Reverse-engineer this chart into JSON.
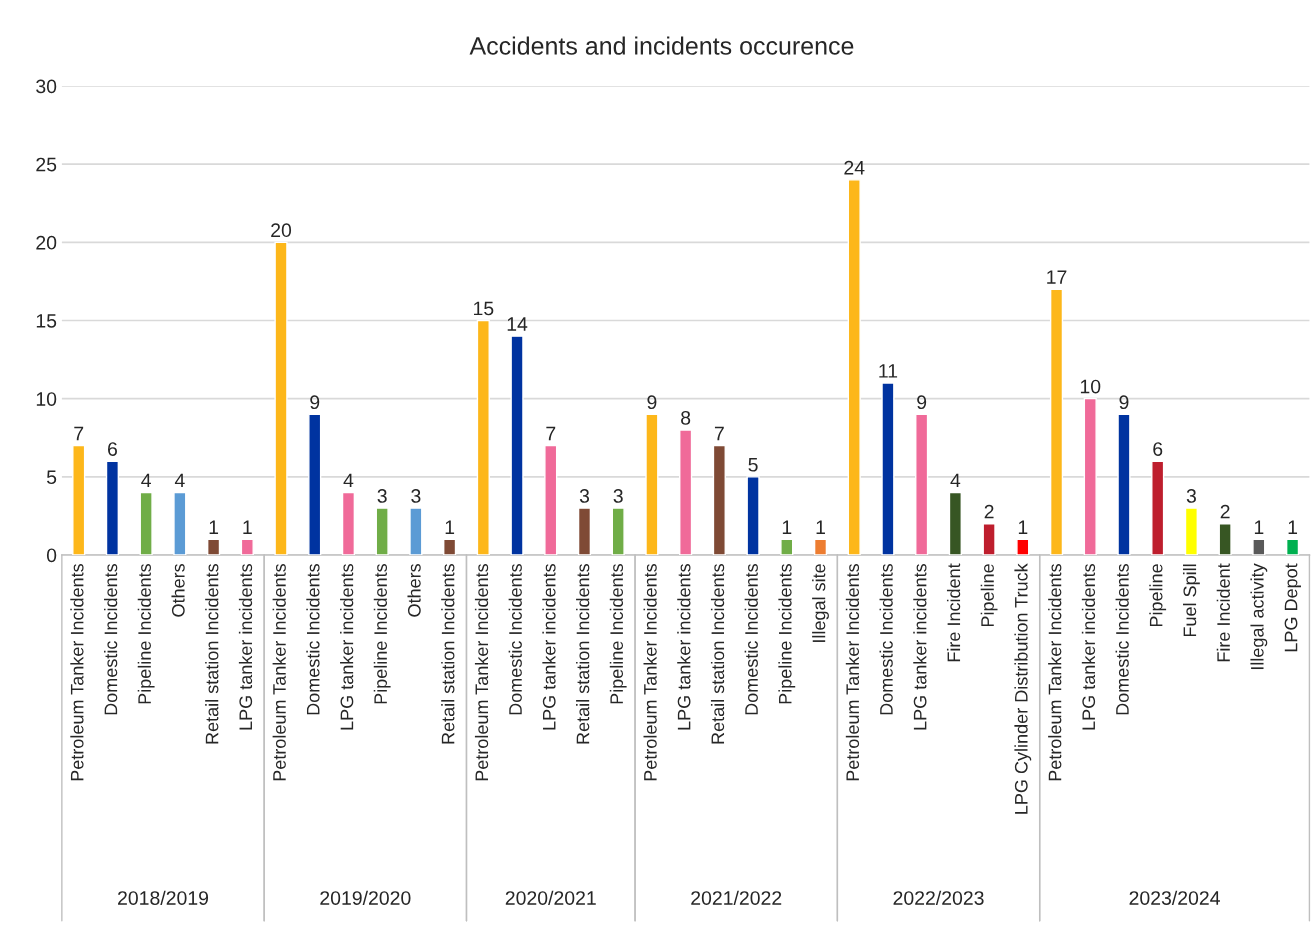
{
  "chart_data": {
    "type": "bar",
    "title": "Accidents and incidents occurence",
    "categories": [
      "Petroleum Tanker Incidents",
      "Domestic Incidents",
      "Pipeline Incidents",
      "Others",
      "Retail station Incidents",
      "LPG tanker incidents",
      "Petroleum Tanker Incidents",
      "Domestic Incidents",
      "LPG tanker incidents",
      "Pipeline Incidents",
      "Others",
      "Retail station Incidents",
      "Petroleum Tanker Incidents",
      "Domestic Incidents",
      "LPG tanker incidents",
      "Retail station Incidents",
      "Pipeline Incidents",
      "Petroleum Tanker Incidents",
      "LPG tanker incidents",
      "Retail station Incidents",
      "Domestic Incidents",
      "Pipeline Incidents",
      "Illegal site",
      "Petroleum Tanker Incidents",
      "Domestic Incidents",
      "LPG tanker incidents",
      "Fire Incident",
      "Pipeline",
      "LPG Cylinder Distribution Truck",
      "Petroleum Tanker Incidents",
      "LPG tanker incidents",
      "Domestic Incidents",
      "Pipeline",
      "Fuel Spill",
      "Fire Incident",
      "Illegal activity",
      "LPG Depot"
    ],
    "series": [
      {
        "values": [
          7,
          6,
          4,
          4,
          1,
          1,
          null,
          null,
          null,
          null,
          null,
          null,
          null,
          null,
          null,
          null,
          null,
          null,
          null,
          null,
          null,
          null,
          null,
          null,
          null,
          null,
          null,
          null,
          null,
          null,
          null,
          null,
          null,
          null,
          null,
          null,
          null
        ],
        "colors": [
          "#FDB71A",
          "#0033A0",
          "#70AD47",
          "#5B9BD5",
          "#7F4A35",
          "#F06A99",
          null,
          null,
          null,
          null,
          null,
          null,
          null,
          null,
          null,
          null,
          null,
          null,
          null,
          null,
          null,
          null,
          null,
          null,
          null,
          null,
          null,
          null,
          null,
          null,
          null,
          null,
          null,
          null,
          null,
          null,
          null
        ]
      },
      {
        "values": [
          null,
          null,
          null,
          null,
          null,
          null,
          20,
          9,
          4,
          3,
          3,
          1,
          null,
          null,
          null,
          null,
          null,
          null,
          null,
          null,
          null,
          null,
          null,
          null,
          null,
          null,
          null,
          null,
          null,
          null,
          null,
          null,
          null,
          null,
          null,
          null,
          null
        ],
        "colors": [
          null,
          null,
          null,
          null,
          null,
          null,
          "#FDB71A",
          "#0033A0",
          "#F06A99",
          "#70AD47",
          "#5B9BD5",
          "#7F4A35",
          null,
          null,
          null,
          null,
          null,
          null,
          null,
          null,
          null,
          null,
          null,
          null,
          null,
          null,
          null,
          null,
          null,
          null,
          null,
          null,
          null,
          null,
          null,
          null,
          null
        ]
      },
      {
        "values": [
          null,
          null,
          null,
          null,
          null,
          null,
          null,
          null,
          null,
          null,
          null,
          null,
          15,
          14,
          7,
          3,
          3,
          null,
          null,
          null,
          null,
          null,
          null,
          null,
          null,
          null,
          null,
          null,
          null,
          null,
          null,
          null,
          null,
          null,
          null,
          null,
          null
        ],
        "colors": [
          null,
          null,
          null,
          null,
          null,
          null,
          null,
          null,
          null,
          null,
          null,
          null,
          "#FDB71A",
          "#0033A0",
          "#F06A99",
          "#7F4A35",
          "#70AD47",
          null,
          null,
          null,
          null,
          null,
          null,
          null,
          null,
          null,
          null,
          null,
          null,
          null,
          null,
          null,
          null,
          null,
          null,
          null,
          null
        ]
      },
      {
        "values": [
          null,
          null,
          null,
          null,
          null,
          null,
          null,
          null,
          null,
          null,
          null,
          null,
          null,
          null,
          null,
          null,
          null,
          9,
          8,
          7,
          5,
          1,
          1,
          null,
          null,
          null,
          null,
          null,
          null,
          null,
          null,
          null,
          null,
          null,
          null,
          null,
          null
        ],
        "colors": [
          null,
          null,
          null,
          null,
          null,
          null,
          null,
          null,
          null,
          null,
          null,
          null,
          null,
          null,
          null,
          null,
          null,
          "#FDB71A",
          "#F06A99",
          "#7F4A35",
          "#0033A0",
          "#70AD47",
          "#ED7D31",
          null,
          null,
          null,
          null,
          null,
          null,
          null,
          null,
          null,
          null,
          null,
          null,
          null,
          null
        ]
      },
      {
        "values": [
          null,
          null,
          null,
          null,
          null,
          null,
          null,
          null,
          null,
          null,
          null,
          null,
          null,
          null,
          null,
          null,
          null,
          null,
          null,
          null,
          null,
          null,
          null,
          24,
          11,
          9,
          4,
          2,
          1,
          null,
          null,
          null,
          null,
          null,
          null,
          null,
          null
        ],
        "colors": [
          null,
          null,
          null,
          null,
          null,
          null,
          null,
          null,
          null,
          null,
          null,
          null,
          null,
          null,
          null,
          null,
          null,
          null,
          null,
          null,
          null,
          null,
          null,
          "#FDB71A",
          "#0033A0",
          "#F06A99",
          "#375623",
          "#BE1E2D",
          "#FF0000",
          null,
          null,
          null,
          null,
          null,
          null,
          null,
          null
        ]
      },
      {
        "values": [
          null,
          null,
          null,
          null,
          null,
          null,
          null,
          null,
          null,
          null,
          null,
          null,
          null,
          null,
          null,
          null,
          null,
          null,
          null,
          null,
          null,
          null,
          null,
          null,
          null,
          null,
          null,
          null,
          null,
          17,
          10,
          9,
          6,
          3,
          2,
          1,
          1
        ],
        "colors": [
          null,
          null,
          null,
          null,
          null,
          null,
          null,
          null,
          null,
          null,
          null,
          null,
          null,
          null,
          null,
          null,
          null,
          null,
          null,
          null,
          null,
          null,
          null,
          null,
          null,
          null,
          null,
          null,
          null,
          "#FDB71A",
          "#F06A99",
          "#0033A0",
          "#BE1E2D",
          "#FFFF00",
          "#375623",
          "#595959",
          "#00B050"
        ]
      }
    ],
    "annotations": [
      "2018/2019",
      "2019/2020",
      "2020/2021",
      "2021/2022",
      "2022/2023",
      "2023/2024"
    ],
    "ylim": [
      0,
      30
    ],
    "yticks": [
      0,
      5,
      10,
      15,
      20,
      25,
      30
    ],
    "grid": "y",
    "data_labels": true
  }
}
